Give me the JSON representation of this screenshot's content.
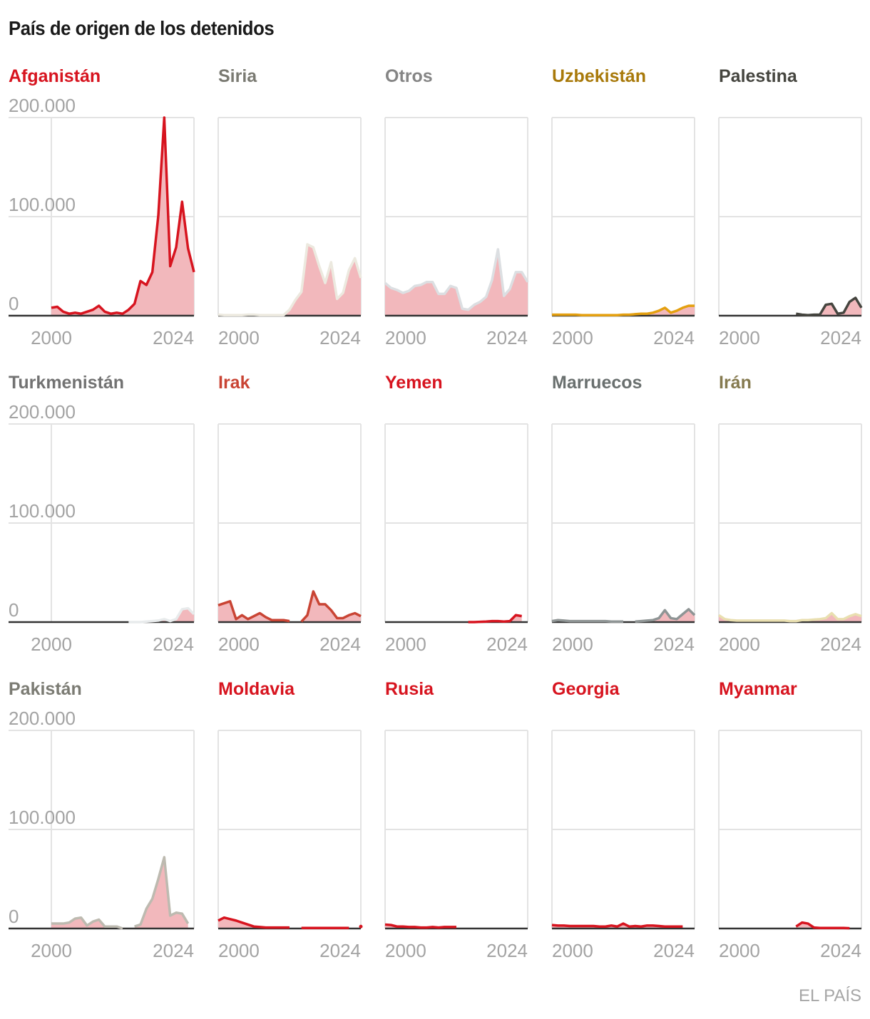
{
  "title": "País de origen de los detenidos",
  "source": "EL PAÍS",
  "chart_data": {
    "type": "area",
    "title": "País de origen de los detenidos",
    "xlim": [
      2000,
      2024
    ],
    "ylim": [
      0,
      200000
    ],
    "x_ticks": [
      2000,
      2024
    ],
    "x_tick_labels": [
      "2000",
      "2024"
    ],
    "y_ticks": [
      0,
      100000,
      200000
    ],
    "y_tick_labels": [
      "0",
      "100.000",
      "200.000"
    ],
    "grid": true,
    "fill_color": "#f2b8bc",
    "x": [
      2000,
      2001,
      2002,
      2003,
      2004,
      2005,
      2006,
      2007,
      2008,
      2009,
      2010,
      2011,
      2012,
      2013,
      2014,
      2015,
      2016,
      2017,
      2018,
      2019,
      2020,
      2021,
      2022,
      2023,
      2024
    ],
    "series": [
      {
        "name": "Afganistán",
        "label_color": "#d7141f",
        "line_color": "#d7141f",
        "values": [
          8000,
          9000,
          4000,
          2000,
          3000,
          2000,
          4000,
          6000,
          10000,
          4000,
          2000,
          3000,
          2000,
          6000,
          12000,
          35000,
          31000,
          44000,
          101000,
          200000,
          50000,
          69000,
          115000,
          68000,
          44000
        ]
      },
      {
        "name": "Siria",
        "label_color": "#7a7a72",
        "line_color": "#ece9df",
        "values": [
          1000,
          500,
          500,
          500,
          500,
          1000,
          1000,
          500,
          500,
          500,
          500,
          500,
          6000,
          16000,
          24000,
          72000,
          69000,
          50000,
          33000,
          54000,
          17000,
          23000,
          46000,
          58000,
          38000
        ]
      },
      {
        "name": "Otros",
        "label_color": "#858585",
        "line_color": "#dcdfe2",
        "values": [
          33000,
          28000,
          26000,
          23000,
          25000,
          30000,
          31000,
          34000,
          34000,
          22000,
          22000,
          30000,
          28000,
          7000,
          6000,
          11000,
          14000,
          19000,
          36000,
          67000,
          20000,
          27000,
          44000,
          44000,
          34000
        ]
      },
      {
        "name": "Uzbekistán",
        "label_color": "#a8790a",
        "line_color": "#e4a010",
        "values": [
          1000,
          1000,
          1000,
          1000,
          1000,
          500,
          500,
          500,
          500,
          500,
          500,
          500,
          1000,
          1000,
          1500,
          2000,
          2000,
          3000,
          5000,
          8000,
          3000,
          5000,
          8000,
          10000,
          10000
        ]
      },
      {
        "name": "Palestina",
        "label_color": "#45453f",
        "line_color": "#45453f",
        "values": [
          null,
          null,
          null,
          null,
          null,
          null,
          null,
          null,
          null,
          null,
          null,
          null,
          null,
          2000,
          1000,
          500,
          1000,
          1000,
          11000,
          12000,
          2000,
          3000,
          14000,
          18000,
          8000
        ]
      },
      {
        "name": "Turkmenistán",
        "label_color": "#727272",
        "line_color": "#e8ebec",
        "values": [
          null,
          null,
          null,
          null,
          null,
          null,
          null,
          null,
          null,
          null,
          null,
          null,
          null,
          0,
          0,
          0,
          500,
          1000,
          1500,
          3000,
          1000,
          3000,
          13000,
          14000,
          8000
        ]
      },
      {
        "name": "Irak",
        "label_color": "#c94434",
        "line_color": "#c94434",
        "values": [
          17000,
          19000,
          21000,
          3000,
          7000,
          3000,
          6000,
          9000,
          5000,
          2000,
          2000,
          2000,
          1000,
          null,
          500,
          7000,
          31000,
          18000,
          18000,
          12000,
          4000,
          4000,
          7000,
          9000,
          6000
        ]
      },
      {
        "name": "Yemen",
        "label_color": "#d7141f",
        "line_color": "#d7141f",
        "values": [
          null,
          null,
          null,
          null,
          null,
          null,
          null,
          null,
          null,
          null,
          null,
          null,
          null,
          null,
          0,
          0,
          300,
          500,
          1000,
          1000,
          500,
          1000,
          7000,
          6000,
          null
        ]
      },
      {
        "name": "Marruecos",
        "label_color": "#6a706f",
        "line_color": "#8f9595",
        "values": [
          1000,
          2000,
          1500,
          1000,
          1000,
          1000,
          1000,
          1000,
          1000,
          1000,
          500,
          500,
          500,
          null,
          500,
          1000,
          1500,
          2000,
          4000,
          12000,
          4000,
          3000,
          8000,
          13000,
          7000
        ]
      },
      {
        "name": "Irán",
        "label_color": "#857a4f",
        "line_color": "#e9dfb0",
        "values": [
          7000,
          3000,
          2000,
          1500,
          1500,
          1500,
          1500,
          1500,
          1500,
          1500,
          1500,
          1500,
          1000,
          1000,
          2000,
          2000,
          2500,
          3000,
          4000,
          9000,
          3000,
          3000,
          6000,
          8000,
          6000
        ]
      },
      {
        "name": "Pakistán",
        "label_color": "#7b7b73",
        "line_color": "#bdbab0",
        "values": [
          5000,
          5000,
          5000,
          6000,
          10000,
          11000,
          3000,
          7000,
          9000,
          2000,
          2000,
          2000,
          0,
          null,
          2000,
          4000,
          20000,
          30000,
          50000,
          72000,
          13000,
          16000,
          15000,
          5000,
          null
        ]
      },
      {
        "name": "Moldavia",
        "label_color": "#d7141f",
        "line_color": "#d7141f",
        "values": [
          8000,
          11000,
          9500,
          8000,
          6000,
          4000,
          2000,
          1500,
          1000,
          1000,
          1000,
          1000,
          1000,
          null,
          500,
          500,
          500,
          500,
          500,
          500,
          500,
          500,
          500,
          null,
          2000
        ]
      },
      {
        "name": "Rusia",
        "label_color": "#d7141f",
        "line_color": "#d7141f",
        "values": [
          4000,
          3500,
          2000,
          2000,
          1500,
          1500,
          1000,
          1000,
          1500,
          1000,
          1500,
          1500,
          1500,
          null,
          null,
          null,
          null,
          null,
          null,
          null,
          null,
          null,
          null,
          null,
          null
        ]
      },
      {
        "name": "Georgia",
        "label_color": "#d7141f",
        "line_color": "#d7141f",
        "values": [
          3500,
          3000,
          3000,
          2500,
          2500,
          2500,
          2500,
          2500,
          2000,
          2000,
          3000,
          2000,
          5000,
          2000,
          2500,
          2000,
          3000,
          3000,
          2500,
          2000,
          2000,
          2000,
          2000,
          null,
          null
        ]
      },
      {
        "name": "Myanmar",
        "label_color": "#d7141f",
        "line_color": "#d7141f",
        "values": [
          null,
          null,
          null,
          null,
          null,
          null,
          null,
          null,
          null,
          null,
          null,
          null,
          null,
          2000,
          6000,
          5000,
          1000,
          500,
          500,
          500,
          500,
          500,
          300,
          null,
          null
        ]
      }
    ]
  }
}
